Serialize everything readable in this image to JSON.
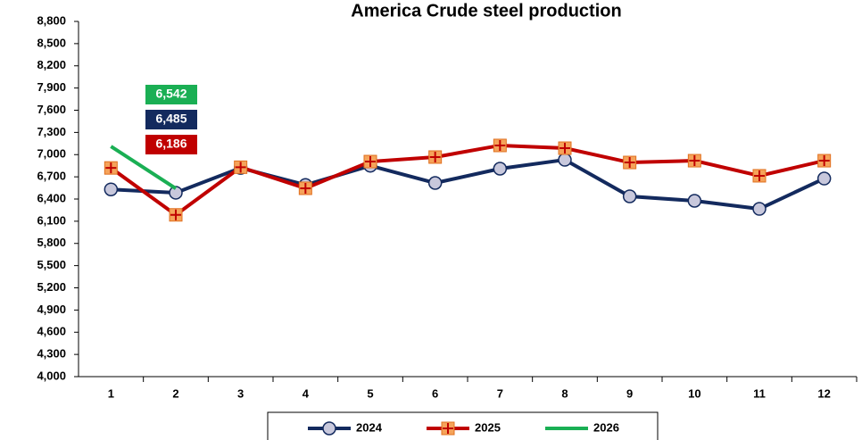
{
  "chart_data": {
    "type": "line",
    "title": "America Crude steel production",
    "categories": [
      "1",
      "2",
      "3",
      "4",
      "5",
      "6",
      "7",
      "8",
      "9",
      "10",
      "11",
      "12"
    ],
    "series": [
      {
        "name": "2024",
        "color": "#132a5e",
        "marker": "circle",
        "values": [
          6530,
          6485,
          6820,
          6590,
          6850,
          6617,
          6810,
          6930,
          6436,
          6376,
          6267,
          6677
        ],
        "value_labels": [
          null,
          "6,485",
          null,
          null,
          null,
          null,
          null,
          null,
          null,
          null,
          null,
          null
        ]
      },
      {
        "name": "2025",
        "color": "#c00000",
        "marker": "plus-square",
        "values": [
          6820,
          6186,
          6830,
          6545,
          6906,
          6967,
          7124,
          7087,
          6894,
          6918,
          6714,
          6918
        ],
        "value_labels": [
          null,
          "6,186",
          null,
          null,
          null,
          null,
          null,
          null,
          null,
          null,
          null,
          null
        ]
      },
      {
        "name": "2026",
        "color": "#1aaf54",
        "marker": "none",
        "values": [
          7111,
          6542,
          null,
          null,
          null,
          null,
          null,
          null,
          null,
          null,
          null,
          null
        ],
        "value_labels": [
          null,
          "6,542",
          null,
          null,
          null,
          null,
          null,
          null,
          null,
          null,
          null,
          null
        ]
      }
    ],
    "ylim": [
      4000,
      8800
    ],
    "yticks": [
      {
        "value": 4000,
        "label": "4,000"
      },
      {
        "value": 4300,
        "label": "4,300"
      },
      {
        "value": 4600,
        "label": "4,600"
      },
      {
        "value": 4900,
        "label": "4,900"
      },
      {
        "value": 5200,
        "label": "5,200"
      },
      {
        "value": 5500,
        "label": "5,500"
      },
      {
        "value": 5800,
        "label": "5,800"
      },
      {
        "value": 6100,
        "label": "6,100"
      },
      {
        "value": 6400,
        "label": "6,400"
      },
      {
        "value": 6700,
        "label": "6,700"
      },
      {
        "value": 7000,
        "label": "7,000"
      },
      {
        "value": 7300,
        "label": "7,300"
      },
      {
        "value": 7600,
        "label": "7,600"
      },
      {
        "value": 7900,
        "label": "7,900"
      },
      {
        "value": 8200,
        "label": "8,200"
      },
      {
        "value": 8500,
        "label": "8,500"
      },
      {
        "value": 8800,
        "label": "8,800"
      }
    ],
    "grid": false,
    "legend": "bottom"
  }
}
